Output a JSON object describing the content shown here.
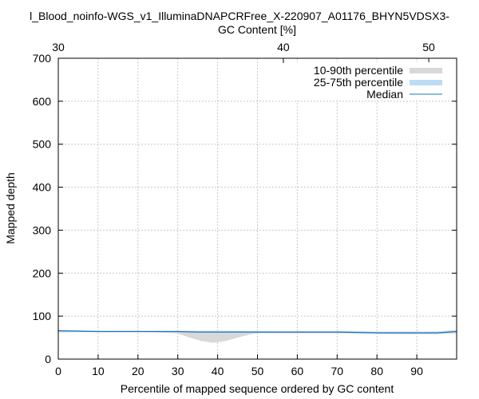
{
  "chart_data": {
    "type": "area",
    "title": "l_Blood_noinfo-WGS_v1_IlluminaDNAPCRFree_X-220907_A01176_BHYN5VDSX3-",
    "xlabel": "Percentile of mapped sequence ordered by GC content",
    "ylabel": "Mapped depth",
    "x2label": "GC Content [%]",
    "xlim": [
      0,
      100
    ],
    "ylim": [
      0,
      700
    ],
    "xticks": [
      "0",
      "10",
      "20",
      "30",
      "40",
      "50",
      "60",
      "70",
      "80",
      "90"
    ],
    "yticks": [
      "0",
      "100",
      "200",
      "300",
      "400",
      "500",
      "600",
      "700"
    ],
    "x2ticks": [
      {
        "label": "30",
        "pos": 0
      },
      {
        "label": "40",
        "pos": 56.5
      },
      {
        "label": "50",
        "pos": 93
      }
    ],
    "grid": true,
    "legend_position": "top-right",
    "legend": [
      "10-90th percentile",
      "25-75th percentile",
      "Median"
    ],
    "series": [
      {
        "name": "10-90th percentile",
        "color": "#d8d8d8",
        "x": [
          0,
          5,
          10,
          15,
          20,
          25,
          30,
          33,
          36,
          39,
          42,
          45,
          48,
          50,
          55,
          60,
          65,
          70,
          75,
          80,
          85,
          90,
          95,
          100
        ],
        "low": [
          62,
          63,
          63,
          63,
          63,
          62,
          60,
          50,
          42,
          38,
          42,
          50,
          57,
          60,
          60,
          60,
          60,
          60,
          60,
          59,
          58,
          58,
          58,
          60
        ],
        "high": [
          68,
          67,
          66,
          66,
          66,
          66,
          66,
          66,
          66,
          66,
          66,
          66,
          65,
          65,
          65,
          65,
          65,
          65,
          65,
          64,
          64,
          64,
          64,
          68
        ]
      },
      {
        "name": "25-75th percentile",
        "color": "#bcdcf4",
        "x": [
          0,
          5,
          10,
          15,
          20,
          25,
          30,
          35,
          40,
          45,
          50,
          55,
          60,
          65,
          70,
          75,
          80,
          85,
          90,
          95,
          100
        ],
        "low": [
          64,
          64,
          64,
          64,
          64,
          63,
          63,
          62,
          62,
          62,
          62,
          62,
          62,
          62,
          62,
          61,
          60,
          60,
          60,
          60,
          62
        ],
        "high": [
          67,
          66,
          65,
          65,
          65,
          65,
          65,
          65,
          65,
          65,
          65,
          64,
          64,
          64,
          64,
          64,
          63,
          63,
          63,
          63,
          66
        ]
      },
      {
        "name": "Median",
        "color": "#1a73c8",
        "x": [
          0,
          5,
          10,
          15,
          20,
          25,
          30,
          35,
          40,
          45,
          50,
          55,
          60,
          65,
          70,
          75,
          80,
          85,
          90,
          95,
          100
        ],
        "y": [
          66,
          65,
          64,
          64,
          64,
          64,
          64,
          63,
          63,
          63,
          63,
          63,
          63,
          63,
          63,
          62,
          61,
          61,
          61,
          61,
          64
        ]
      }
    ]
  }
}
